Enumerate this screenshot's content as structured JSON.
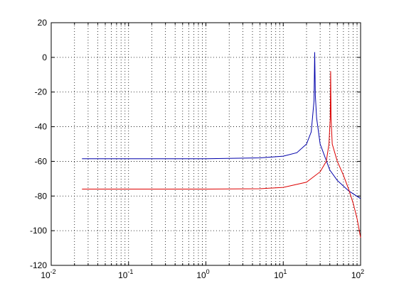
{
  "chart_data": {
    "type": "line",
    "xscale": "log",
    "grid": true,
    "minor_grid": true,
    "xlim": [
      0.01,
      100
    ],
    "xticks": [
      {
        "value": 0.01,
        "label": "10",
        "exponent": "-2"
      },
      {
        "value": 0.1,
        "label": "10",
        "exponent": "-1"
      },
      {
        "value": 1,
        "label": "10",
        "exponent": "0"
      },
      {
        "value": 10,
        "label": "10",
        "exponent": "1"
      },
      {
        "value": 100,
        "label": "10",
        "exponent": "2"
      }
    ],
    "ylim": [
      -120,
      20
    ],
    "yticks": [
      -120,
      -100,
      -80,
      -60,
      -40,
      -20,
      0,
      20
    ],
    "series": [
      {
        "color": "#0000aa",
        "x": [
          0.025,
          1,
          5,
          10,
          15,
          20,
          23,
          25,
          25.5,
          26,
          27,
          30,
          40,
          50,
          70,
          100
        ],
        "values": [
          -58.5,
          -58.5,
          -58,
          -57,
          -55,
          -50,
          -43,
          -25,
          3,
          -22,
          -35,
          -50,
          -65,
          -71,
          -77,
          -81.5
        ]
      },
      {
        "color": "#dd0000",
        "x": [
          0.025,
          1,
          5,
          10,
          20,
          30,
          36,
          39,
          40.5,
          41,
          41.5,
          43,
          50,
          60,
          70,
          80,
          90,
          100
        ],
        "values": [
          -76,
          -76,
          -75.8,
          -75,
          -72,
          -66,
          -60,
          -50,
          -35,
          -8,
          -35,
          -50,
          -60,
          -68,
          -76,
          -84,
          -93,
          -104
        ]
      }
    ]
  }
}
